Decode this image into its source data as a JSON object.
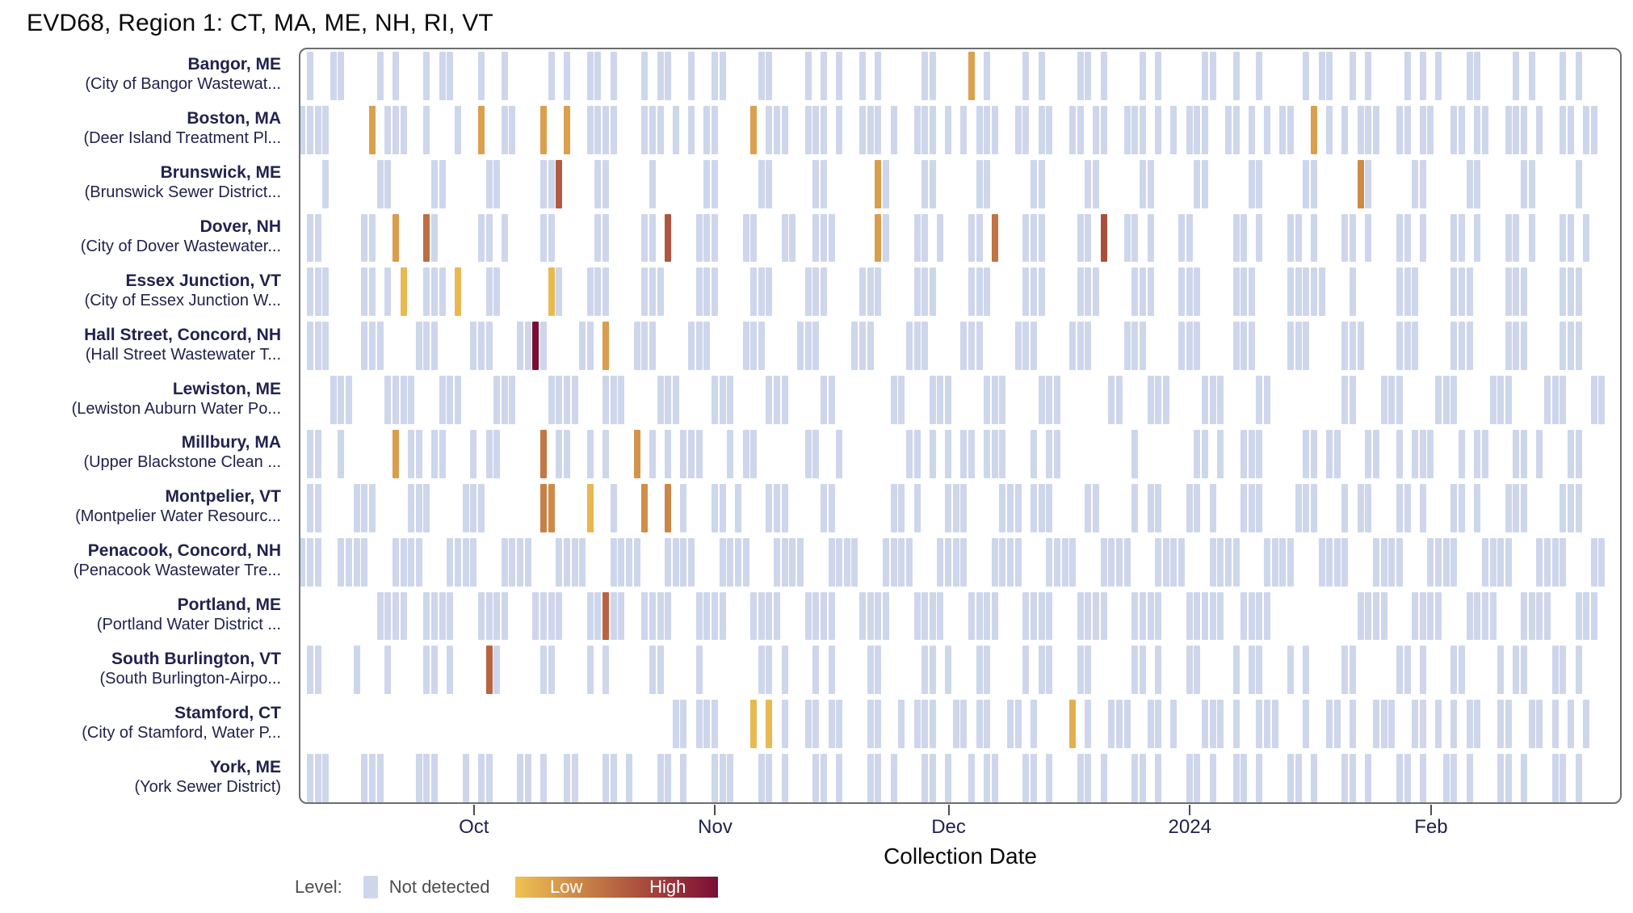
{
  "title": "EVD68, Region 1: CT, MA, ME, NH, RI, VT",
  "chart_data": {
    "type": "heatmap",
    "x_axis": {
      "label": "Collection Date",
      "days_shown": 170,
      "ticks": [
        {
          "day": 22,
          "label": "Oct"
        },
        {
          "day": 53,
          "label": "Nov"
        },
        {
          "day": 83,
          "label": "Dec"
        },
        {
          "day": 114,
          "label": "2024"
        },
        {
          "day": 145,
          "label": "Feb"
        }
      ]
    },
    "legend": {
      "prefix": "Level:",
      "not_detected_label": "Not detected",
      "low_label": "Low",
      "high_label": "High"
    },
    "colors": {
      "not_detected": "#CED6EC",
      "gradient": [
        [
          0,
          "#EFC253"
        ],
        [
          0.55,
          "#B25B40"
        ],
        [
          1,
          "#7B0D35"
        ]
      ],
      "panel_border": "#6E6E6E",
      "label_navy": "#22224E",
      "legend_text": "#4D4D4D"
    },
    "sites": [
      {
        "city": "Bangor, ME",
        "facility": "(City of Bangor Wastewat...",
        "not_detected_days": [
          1,
          4,
          5,
          10,
          12,
          16,
          18,
          19,
          23,
          26,
          32,
          34,
          37,
          38,
          40,
          44,
          46,
          47,
          50,
          53,
          54,
          59,
          60,
          65,
          67,
          69,
          72,
          74,
          80,
          81,
          88,
          93,
          95,
          100,
          101,
          103,
          108,
          110,
          116,
          117,
          120,
          123,
          129,
          131,
          132,
          135,
          137,
          142,
          144,
          146,
          150,
          151,
          156,
          158,
          162,
          164
        ],
        "detections": [
          {
            "day": 86,
            "level": 0.18
          }
        ]
      },
      {
        "city": "Boston, MA",
        "facility": "(Deer Island Treatment Pl...",
        "not_detected_days": [
          0,
          1,
          2,
          3,
          11,
          12,
          13,
          16,
          20,
          26,
          27,
          37,
          38,
          39,
          40,
          44,
          45,
          46,
          48,
          50,
          52,
          53,
          60,
          61,
          62,
          65,
          66,
          67,
          69,
          72,
          73,
          74,
          76,
          79,
          80,
          81,
          83,
          85,
          87,
          88,
          89,
          92,
          93,
          95,
          96,
          99,
          100,
          102,
          103,
          106,
          107,
          108,
          110,
          112,
          114,
          115,
          116,
          119,
          120,
          122,
          124,
          126,
          127,
          132,
          134,
          136,
          137,
          138,
          141,
          142,
          144,
          145,
          148,
          149,
          151,
          152,
          155,
          156,
          157,
          159,
          162,
          163,
          165,
          166
        ],
        "detections": [
          {
            "day": 9,
            "level": 0.18
          },
          {
            "day": 23,
            "level": 0.18
          },
          {
            "day": 31,
            "level": 0.18
          },
          {
            "day": 34,
            "level": 0.18
          },
          {
            "day": 58,
            "level": 0.18
          },
          {
            "day": 130,
            "level": 0.18
          }
        ]
      },
      {
        "city": "Brunswick, ME",
        "facility": "(Brunswick Sewer District...",
        "not_detected_days": [
          3,
          10,
          11,
          17,
          18,
          24,
          25,
          31,
          32,
          38,
          39,
          45,
          52,
          53,
          59,
          60,
          66,
          67,
          75,
          80,
          81,
          87,
          88,
          94,
          95,
          101,
          102,
          108,
          109,
          115,
          116,
          122,
          123,
          129,
          130,
          137,
          143,
          144,
          150,
          151,
          157,
          158,
          164
        ],
        "detections": [
          {
            "day": 33,
            "level": 0.55
          },
          {
            "day": 74,
            "level": 0.2
          },
          {
            "day": 136,
            "level": 0.3
          }
        ]
      },
      {
        "city": "Dover, NH",
        "facility": "(City of Dover Wastewater...",
        "not_detected_days": [
          1,
          2,
          8,
          9,
          17,
          23,
          24,
          26,
          31,
          32,
          38,
          39,
          44,
          45,
          51,
          52,
          53,
          57,
          58,
          62,
          63,
          66,
          67,
          68,
          75,
          79,
          80,
          82,
          86,
          87,
          93,
          94,
          95,
          100,
          101,
          106,
          107,
          109,
          113,
          114,
          120,
          121,
          123,
          127,
          128,
          130,
          134,
          135,
          137,
          141,
          142,
          144,
          148,
          149,
          151,
          155,
          156,
          158,
          162,
          163,
          165
        ],
        "detections": [
          {
            "day": 12,
            "level": 0.2
          },
          {
            "day": 16,
            "level": 0.45
          },
          {
            "day": 47,
            "level": 0.58
          },
          {
            "day": 74,
            "level": 0.2
          },
          {
            "day": 89,
            "level": 0.42
          },
          {
            "day": 103,
            "level": 0.62
          }
        ]
      },
      {
        "city": "Essex Junction, VT",
        "facility": "(City of Essex Junction W...",
        "not_detected_days": [
          1,
          2,
          3,
          8,
          9,
          11,
          16,
          17,
          18,
          24,
          25,
          33,
          37,
          38,
          39,
          44,
          45,
          46,
          51,
          52,
          53,
          58,
          59,
          60,
          65,
          66,
          67,
          72,
          73,
          74,
          79,
          80,
          81,
          86,
          87,
          88,
          93,
          94,
          95,
          100,
          101,
          102,
          107,
          108,
          109,
          113,
          114,
          115,
          120,
          121,
          122,
          127,
          128,
          129,
          130,
          131,
          135,
          141,
          142,
          143,
          148,
          149,
          150,
          155,
          156,
          157,
          162,
          163,
          164
        ],
        "detections": [
          {
            "day": 13,
            "level": 0.05
          },
          {
            "day": 20,
            "level": 0.05
          },
          {
            "day": 32,
            "level": 0.05
          }
        ]
      },
      {
        "city": "Hall Street, Concord, NH",
        "facility": "(Hall Street Wastewater T...",
        "not_detected_days": [
          1,
          2,
          3,
          8,
          9,
          10,
          15,
          16,
          17,
          22,
          23,
          24,
          28,
          29,
          31,
          36,
          37,
          43,
          44,
          45,
          50,
          51,
          52,
          57,
          58,
          59,
          64,
          65,
          66,
          71,
          72,
          73,
          78,
          79,
          80,
          85,
          86,
          87,
          92,
          93,
          94,
          99,
          100,
          101,
          106,
          107,
          108,
          113,
          114,
          115,
          120,
          121,
          122,
          127,
          128,
          129,
          134,
          135,
          136,
          141,
          142,
          143,
          148,
          149,
          150,
          155,
          156,
          157,
          162,
          163,
          164
        ],
        "detections": [
          {
            "day": 30,
            "level": 1.0
          },
          {
            "day": 39,
            "level": 0.2
          }
        ]
      },
      {
        "city": "Lewiston, ME",
        "facility": "(Lewiston Auburn Water Po...",
        "not_detected_days": [
          4,
          5,
          6,
          11,
          12,
          13,
          14,
          18,
          19,
          20,
          25,
          26,
          27,
          32,
          33,
          34,
          35,
          39,
          40,
          41,
          46,
          47,
          48,
          53,
          54,
          55,
          60,
          61,
          62,
          67,
          68,
          76,
          77,
          81,
          82,
          83,
          88,
          89,
          90,
          95,
          96,
          97,
          104,
          105,
          109,
          110,
          111,
          116,
          117,
          118,
          123,
          124,
          134,
          135,
          139,
          140,
          141,
          146,
          147,
          148,
          153,
          154,
          155,
          160,
          161,
          162,
          166,
          167
        ],
        "detections": []
      },
      {
        "city": "Millbury, MA",
        "facility": "(Upper Blackstone Clean ...",
        "not_detected_days": [
          1,
          2,
          5,
          14,
          15,
          17,
          18,
          22,
          24,
          25,
          33,
          34,
          37,
          39,
          45,
          47,
          49,
          50,
          51,
          55,
          57,
          58,
          65,
          66,
          69,
          78,
          79,
          81,
          83,
          85,
          86,
          88,
          89,
          90,
          94,
          96,
          97,
          107,
          115,
          116,
          118,
          121,
          122,
          123,
          129,
          130,
          132,
          133,
          137,
          138,
          141,
          143,
          144,
          145,
          149,
          151,
          152,
          156,
          157,
          159,
          163,
          164
        ],
        "detections": [
          {
            "day": 12,
            "level": 0.2
          },
          {
            "day": 31,
            "level": 0.4
          },
          {
            "day": 43,
            "level": 0.25
          }
        ]
      },
      {
        "city": "Montpelier, VT",
        "facility": "(Montpelier Water Resourc...",
        "not_detected_days": [
          1,
          2,
          7,
          8,
          9,
          14,
          15,
          16,
          21,
          22,
          23,
          40,
          49,
          53,
          54,
          56,
          60,
          61,
          62,
          67,
          68,
          76,
          77,
          79,
          83,
          84,
          85,
          90,
          91,
          92,
          94,
          95,
          96,
          101,
          102,
          107,
          109,
          110,
          114,
          115,
          117,
          121,
          122,
          123,
          128,
          129,
          130,
          134,
          136,
          137,
          141,
          142,
          144,
          148,
          149,
          151,
          155,
          156,
          157,
          162,
          163,
          164
        ],
        "detections": [
          {
            "day": 31,
            "level": 0.35
          },
          {
            "day": 32,
            "level": 0.3
          },
          {
            "day": 37,
            "level": 0.06
          },
          {
            "day": 44,
            "level": 0.28
          },
          {
            "day": 47,
            "level": 0.32
          }
        ]
      },
      {
        "city": "Penacook, Concord, NH",
        "facility": "(Penacook Wastewater Tre...",
        "not_detected_days": [
          0,
          1,
          2,
          5,
          6,
          7,
          8,
          12,
          13,
          14,
          15,
          19,
          20,
          21,
          22,
          26,
          27,
          28,
          29,
          33,
          34,
          35,
          36,
          40,
          41,
          42,
          43,
          47,
          48,
          49,
          50,
          54,
          55,
          56,
          57,
          61,
          62,
          63,
          64,
          68,
          69,
          70,
          71,
          75,
          76,
          77,
          78,
          82,
          83,
          84,
          85,
          89,
          90,
          91,
          92,
          96,
          97,
          98,
          99,
          103,
          104,
          105,
          106,
          110,
          111,
          112,
          113,
          117,
          118,
          119,
          120,
          124,
          125,
          126,
          127,
          131,
          132,
          133,
          134,
          138,
          139,
          140,
          141,
          145,
          146,
          147,
          148,
          152,
          153,
          154,
          155,
          159,
          160,
          161,
          162,
          166,
          167
        ],
        "detections": []
      },
      {
        "city": "Portland, ME",
        "facility": "(Portland Water District ...",
        "not_detected_days": [
          10,
          11,
          12,
          13,
          16,
          17,
          18,
          19,
          23,
          24,
          25,
          26,
          30,
          31,
          32,
          33,
          37,
          38,
          40,
          41,
          44,
          45,
          46,
          47,
          51,
          52,
          53,
          54,
          58,
          59,
          60,
          61,
          65,
          66,
          67,
          68,
          72,
          73,
          74,
          75,
          79,
          80,
          81,
          82,
          86,
          87,
          88,
          89,
          93,
          94,
          95,
          96,
          100,
          101,
          102,
          103,
          107,
          108,
          109,
          110,
          114,
          115,
          116,
          117,
          118,
          121,
          122,
          123,
          124,
          136,
          137,
          138,
          139,
          143,
          144,
          145,
          146,
          150,
          151,
          152,
          153,
          157,
          158,
          159,
          160,
          164,
          165,
          166
        ],
        "detections": [
          {
            "day": 39,
            "level": 0.5
          }
        ]
      },
      {
        "city": "South Burlington, VT",
        "facility": "(South Burlington-Airpo...",
        "not_detected_days": [
          1,
          2,
          7,
          11,
          16,
          17,
          19,
          25,
          31,
          32,
          37,
          39,
          45,
          46,
          51,
          59,
          60,
          62,
          66,
          68,
          73,
          74,
          80,
          81,
          83,
          87,
          88,
          93,
          95,
          96,
          100,
          101,
          107,
          108,
          110,
          114,
          115,
          120,
          122,
          123,
          127,
          129,
          134,
          135,
          141,
          142,
          144,
          148,
          149,
          154,
          156,
          157,
          161,
          162,
          164
        ],
        "detections": [
          {
            "day": 24,
            "level": 0.5
          }
        ]
      },
      {
        "city": "Stamford, CT",
        "facility": "(City of Stamford, Water P...",
        "not_detected_days": [
          48,
          49,
          51,
          52,
          53,
          62,
          65,
          66,
          68,
          69,
          73,
          74,
          77,
          79,
          80,
          81,
          84,
          85,
          87,
          88,
          91,
          92,
          94,
          101,
          104,
          105,
          106,
          109,
          110,
          112,
          116,
          117,
          118,
          120,
          123,
          124,
          125,
          129,
          132,
          133,
          135,
          138,
          139,
          140,
          143,
          144,
          146,
          148,
          150,
          151,
          154,
          155,
          158,
          159,
          161,
          163,
          165
        ],
        "detections": [
          {
            "day": 58,
            "level": 0.05
          },
          {
            "day": 60,
            "level": 0.05
          },
          {
            "day": 99,
            "level": 0.1
          }
        ]
      },
      {
        "city": "York, ME",
        "facility": "(York Sewer District)",
        "not_detected_days": [
          1,
          2,
          3,
          8,
          9,
          10,
          15,
          16,
          17,
          21,
          23,
          24,
          28,
          29,
          31,
          34,
          35,
          39,
          40,
          42,
          46,
          47,
          49,
          53,
          54,
          55,
          59,
          60,
          62,
          66,
          67,
          69,
          73,
          74,
          76,
          80,
          81,
          83,
          86,
          88,
          89,
          93,
          94,
          96,
          100,
          101,
          103,
          107,
          108,
          110,
          114,
          115,
          117,
          120,
          121,
          123,
          127,
          128,
          130,
          134,
          135,
          137,
          141,
          142,
          144,
          147,
          148,
          150,
          154,
          155,
          157,
          161,
          162,
          164
        ],
        "detections": []
      }
    ]
  }
}
